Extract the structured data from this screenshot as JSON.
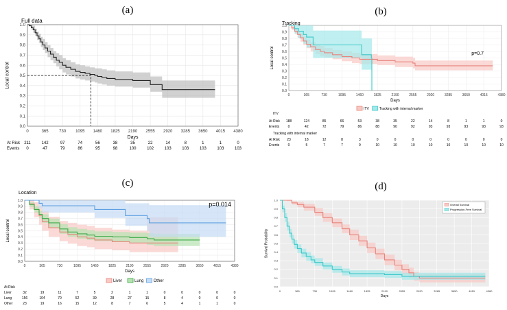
{
  "panel_labels": [
    "(a)",
    "(b)",
    "(c)",
    "(d)"
  ],
  "x_ticks": [
    "0",
    "365",
    "730",
    "1095",
    "1460",
    "1825",
    "2190",
    "2555",
    "2920",
    "3285",
    "3650",
    "4015",
    "4380"
  ],
  "chart_data": [
    {
      "type": "line",
      "title": "Full data",
      "xlabel": "Days",
      "ylabel": "Local control",
      "xlim": [
        0,
        4380
      ],
      "ylim": [
        0,
        1
      ],
      "y_ticks": [
        "0.0",
        "0.1",
        "0.2",
        "0.3",
        "0.4",
        "0.5",
        "0.6",
        "0.7",
        "0.8",
        "0.9",
        "1.0"
      ],
      "series": [
        {
          "name": "All",
          "color": "#222222",
          "band": "#bdbdbd",
          "x": [
            0,
            40,
            80,
            120,
            160,
            200,
            240,
            280,
            320,
            365,
            420,
            480,
            540,
            600,
            660,
            730,
            800,
            900,
            1000,
            1095,
            1200,
            1300,
            1400,
            1460,
            1550,
            1650,
            1825,
            2190,
            2555,
            2700,
            2800,
            3900
          ],
          "y": [
            1.0,
            0.99,
            0.97,
            0.95,
            0.92,
            0.89,
            0.86,
            0.83,
            0.8,
            0.77,
            0.74,
            0.71,
            0.68,
            0.65,
            0.63,
            0.6,
            0.58,
            0.56,
            0.54,
            0.53,
            0.52,
            0.51,
            0.5,
            0.49,
            0.48,
            0.47,
            0.46,
            0.45,
            0.41,
            0.41,
            0.36,
            0.36
          ],
          "lower": [
            1.0,
            0.98,
            0.95,
            0.92,
            0.89,
            0.85,
            0.82,
            0.78,
            0.75,
            0.72,
            0.68,
            0.65,
            0.62,
            0.59,
            0.56,
            0.53,
            0.51,
            0.49,
            0.47,
            0.46,
            0.45,
            0.44,
            0.43,
            0.42,
            0.41,
            0.4,
            0.39,
            0.38,
            0.34,
            0.34,
            0.28,
            0.28
          ],
          "upper": [
            1.0,
            1.0,
            1.0,
            0.99,
            0.96,
            0.93,
            0.91,
            0.88,
            0.86,
            0.83,
            0.8,
            0.77,
            0.74,
            0.72,
            0.7,
            0.67,
            0.65,
            0.63,
            0.61,
            0.6,
            0.59,
            0.58,
            0.57,
            0.57,
            0.56,
            0.55,
            0.54,
            0.53,
            0.49,
            0.49,
            0.45,
            0.45
          ]
        }
      ],
      "median": {
        "x": 1320,
        "y": 0.5
      },
      "risk_table": {
        "rows": [
          {
            "label": "At Risk",
            "values": [
              "211",
              "142",
              "97",
              "74",
              "56",
              "38",
              "35",
              "22",
              "14",
              "8",
              "1",
              "1",
              "0"
            ]
          },
          {
            "label": "Events",
            "values": [
              "0",
              "47",
              "79",
              "86",
              "95",
              "98",
              "100",
              "102",
              "103",
              "103",
              "103",
              "103",
              "103"
            ]
          }
        ]
      }
    },
    {
      "type": "line",
      "title": "Tracking",
      "xlabel": "Days",
      "ylabel": "Local control",
      "xlim": [
        0,
        4380
      ],
      "ylim": [
        0,
        1
      ],
      "y_ticks": [
        "0.0",
        "0.1",
        "0.2",
        "0.3",
        "0.4",
        "0.5",
        "0.6",
        "0.7",
        "0.8",
        "0.9",
        "1.0"
      ],
      "annotation": "p=0.7",
      "legend": [
        "ITV",
        "Tracking with internal marker"
      ],
      "series": [
        {
          "name": "ITV",
          "color": "#e8847c",
          "band": "#f8c9c4",
          "x": [
            0,
            60,
            120,
            180,
            240,
            300,
            365,
            450,
            550,
            650,
            730,
            900,
            1095,
            1300,
            1460,
            1825,
            2190,
            2555,
            2600,
            4200
          ],
          "y": [
            1.0,
            0.96,
            0.91,
            0.86,
            0.81,
            0.76,
            0.71,
            0.67,
            0.63,
            0.6,
            0.58,
            0.55,
            0.52,
            0.5,
            0.48,
            0.46,
            0.44,
            0.42,
            0.38,
            0.38
          ],
          "lower": [
            1.0,
            0.93,
            0.87,
            0.81,
            0.75,
            0.7,
            0.65,
            0.6,
            0.56,
            0.53,
            0.51,
            0.48,
            0.45,
            0.42,
            0.41,
            0.39,
            0.36,
            0.34,
            0.31,
            0.31
          ],
          "upper": [
            1.0,
            0.99,
            0.95,
            0.91,
            0.87,
            0.83,
            0.78,
            0.74,
            0.7,
            0.68,
            0.65,
            0.62,
            0.6,
            0.58,
            0.56,
            0.54,
            0.52,
            0.5,
            0.46,
            0.46
          ]
        },
        {
          "name": "Tracking with internal marker",
          "color": "#3cc8c8",
          "band": "#a4e8ea",
          "x": [
            0,
            120,
            200,
            300,
            365,
            500,
            730,
            900,
            1095,
            1500,
            1600,
            1700,
            1710
          ],
          "y": [
            1.0,
            0.95,
            0.91,
            0.86,
            0.82,
            0.7,
            0.7,
            0.7,
            0.7,
            0.55,
            0.55,
            0.5,
            0.0
          ],
          "lower": [
            1.0,
            0.87,
            0.8,
            0.72,
            0.66,
            0.5,
            0.5,
            0.5,
            0.5,
            0.32,
            0.32,
            0.3,
            0.0
          ],
          "upper": [
            1.0,
            1.0,
            1.0,
            1.0,
            1.0,
            0.92,
            0.92,
            0.92,
            0.92,
            0.8,
            0.8,
            0.8,
            0.8
          ]
        }
      ],
      "risk_table": {
        "groups": [
          {
            "name": "ITV",
            "rows": [
              {
                "label": "At Risk",
                "values": [
                  "188",
                  "124",
                  "85",
                  "66",
                  "53",
                  "38",
                  "35",
                  "22",
                  "14",
                  "8",
                  "1",
                  "1",
                  "0"
                ]
              },
              {
                "label": "Events",
                "values": [
                  "0",
                  "42",
                  "72",
                  "79",
                  "86",
                  "88",
                  "90",
                  "92",
                  "93",
                  "93",
                  "93",
                  "93",
                  "93"
                ]
              }
            ]
          },
          {
            "name": "Tracking with internal marker",
            "rows": [
              {
                "label": "At Risk",
                "values": [
                  "23",
                  "18",
                  "12",
                  "8",
                  "3",
                  "0",
                  "0",
                  "0",
                  "0",
                  "0",
                  "0",
                  "0",
                  "0"
                ]
              },
              {
                "label": "Events",
                "values": [
                  "0",
                  "5",
                  "7",
                  "7",
                  "9",
                  "10",
                  "10",
                  "10",
                  "10",
                  "10",
                  "10",
                  "10",
                  "10"
                ]
              }
            ]
          }
        ]
      }
    },
    {
      "type": "line",
      "title": "Location",
      "xlabel": "Days",
      "ylabel": "Local control",
      "xlim": [
        0,
        4380
      ],
      "ylim": [
        0,
        1
      ],
      "y_ticks": [
        "0.0",
        "0.1",
        "0.2",
        "0.3",
        "0.4",
        "0.5",
        "0.6",
        "0.7",
        "0.8",
        "0.9",
        "1.0"
      ],
      "annotation": "p=0.014",
      "legend": [
        "Liver",
        "Lung",
        "Other"
      ],
      "series": [
        {
          "name": "Liver",
          "color": "#e8847c",
          "band": "#f8c9c4",
          "x": [
            0,
            100,
            200,
            300,
            365,
            500,
            730,
            900,
            1095,
            1300,
            1460,
            1825,
            2190,
            2555,
            2700,
            3200
          ],
          "y": [
            1.0,
            0.94,
            0.85,
            0.75,
            0.65,
            0.55,
            0.48,
            0.44,
            0.4,
            0.38,
            0.35,
            0.32,
            0.3,
            0.3,
            0.3,
            0.3
          ],
          "lower": [
            1.0,
            0.85,
            0.72,
            0.6,
            0.5,
            0.4,
            0.33,
            0.29,
            0.25,
            0.23,
            0.2,
            0.18,
            0.15,
            0.15,
            0.15,
            0.15
          ],
          "upper": [
            1.0,
            1.0,
            0.97,
            0.9,
            0.82,
            0.73,
            0.66,
            0.63,
            0.6,
            0.58,
            0.55,
            0.52,
            0.5,
            0.72,
            0.72,
            0.72
          ]
        },
        {
          "name": "Lung",
          "color": "#3daa4a",
          "band": "#b6e2b0",
          "x": [
            0,
            100,
            200,
            300,
            365,
            500,
            730,
            900,
            1095,
            1300,
            1460,
            1825,
            2190,
            2555,
            2700,
            3650
          ],
          "y": [
            1.0,
            0.93,
            0.85,
            0.77,
            0.7,
            0.63,
            0.53,
            0.48,
            0.45,
            0.43,
            0.41,
            0.4,
            0.39,
            0.37,
            0.35,
            0.35
          ],
          "lower": [
            1.0,
            0.89,
            0.8,
            0.71,
            0.63,
            0.55,
            0.45,
            0.4,
            0.37,
            0.35,
            0.33,
            0.32,
            0.3,
            0.27,
            0.25,
            0.25
          ],
          "upper": [
            1.0,
            0.97,
            0.9,
            0.83,
            0.77,
            0.7,
            0.61,
            0.56,
            0.53,
            0.51,
            0.49,
            0.48,
            0.47,
            0.46,
            0.45,
            0.45
          ]
        },
        {
          "name": "Other",
          "color": "#5d9fe0",
          "band": "#c4dcf5",
          "x": [
            0,
            200,
            300,
            365,
            730,
            1095,
            1460,
            2000,
            2100,
            2190,
            2555,
            2600,
            4200
          ],
          "y": [
            1.0,
            1.0,
            0.95,
            0.91,
            0.91,
            0.91,
            0.85,
            0.85,
            0.75,
            0.75,
            0.7,
            0.63,
            0.63
          ],
          "lower": [
            1.0,
            1.0,
            0.87,
            0.8,
            0.8,
            0.8,
            0.71,
            0.71,
            0.58,
            0.58,
            0.5,
            0.4,
            0.4
          ],
          "upper": [
            1.0,
            1.0,
            1.0,
            1.0,
            1.0,
            1.0,
            1.0,
            1.0,
            0.95,
            0.95,
            0.95,
            0.92,
            0.92
          ]
        }
      ],
      "risk_table": {
        "title": "At Risk",
        "rows": [
          {
            "label": "Liver",
            "values": [
              "32",
              "19",
              "11",
              "7",
              "5",
              "2",
              "1",
              "1",
              "0",
              "0",
              "0",
              "0",
              "0"
            ]
          },
          {
            "label": "Lung",
            "values": [
              "156",
              "104",
              "70",
              "52",
              "39",
              "28",
              "27",
              "15",
              "8",
              "4",
              "0",
              "0",
              "0"
            ]
          },
          {
            "label": "Other",
            "values": [
              "23",
              "19",
              "16",
              "15",
              "12",
              "8",
              "7",
              "6",
              "5",
              "4",
              "1",
              "1",
              "0"
            ]
          }
        ]
      }
    },
    {
      "type": "line",
      "title": "",
      "xlabel": "Days",
      "ylabel": "Survival Probability",
      "xlim": [
        0,
        4380
      ],
      "ylim": [
        0,
        1
      ],
      "y_ticks": [
        "0.0",
        "0.1",
        "0.2",
        "0.3",
        "0.4",
        "0.5",
        "0.6",
        "0.7",
        "0.8",
        "0.9",
        "1.0"
      ],
      "legend": [
        "Overall Survival",
        "Progression-Free Survival"
      ],
      "series": [
        {
          "name": "Overall Survival",
          "color": "#e8847c",
          "band": "#f8c9c4",
          "x": [
            0,
            150,
            250,
            365,
            500,
            730,
            900,
            1095,
            1300,
            1460,
            1650,
            1825,
            2000,
            2190,
            2400,
            2555,
            2700,
            2800,
            2920,
            4300
          ],
          "y": [
            1.0,
            1.0,
            0.97,
            0.95,
            0.92,
            0.86,
            0.8,
            0.74,
            0.67,
            0.6,
            0.53,
            0.45,
            0.38,
            0.31,
            0.25,
            0.2,
            0.16,
            0.12,
            0.1,
            0.1
          ],
          "lower": [
            1.0,
            0.99,
            0.95,
            0.92,
            0.88,
            0.82,
            0.75,
            0.69,
            0.62,
            0.54,
            0.47,
            0.39,
            0.32,
            0.25,
            0.19,
            0.14,
            0.1,
            0.07,
            0.05,
            0.05
          ],
          "upper": [
            1.0,
            1.0,
            0.99,
            0.98,
            0.96,
            0.91,
            0.85,
            0.79,
            0.72,
            0.66,
            0.59,
            0.51,
            0.44,
            0.37,
            0.31,
            0.26,
            0.22,
            0.17,
            0.15,
            0.15
          ]
        },
        {
          "name": "Progression-Free Survival",
          "color": "#3cc8c8",
          "band": "#a4e8ea",
          "x": [
            0,
            50,
            100,
            150,
            200,
            250,
            300,
            365,
            450,
            550,
            650,
            730,
            900,
            1095,
            1300,
            1460,
            1825,
            2190,
            2555,
            2920,
            4300
          ],
          "y": [
            1.0,
            0.9,
            0.8,
            0.7,
            0.62,
            0.55,
            0.49,
            0.44,
            0.39,
            0.35,
            0.31,
            0.28,
            0.24,
            0.2,
            0.17,
            0.15,
            0.15,
            0.14,
            0.12,
            0.12,
            0.12
          ],
          "lower": [
            1.0,
            0.86,
            0.75,
            0.65,
            0.57,
            0.5,
            0.44,
            0.39,
            0.34,
            0.3,
            0.27,
            0.24,
            0.2,
            0.16,
            0.13,
            0.11,
            0.11,
            0.1,
            0.08,
            0.08,
            0.08
          ],
          "upper": [
            1.0,
            0.94,
            0.85,
            0.75,
            0.67,
            0.6,
            0.54,
            0.49,
            0.44,
            0.4,
            0.36,
            0.33,
            0.28,
            0.24,
            0.21,
            0.19,
            0.19,
            0.18,
            0.16,
            0.16,
            0.16
          ]
        }
      ]
    }
  ]
}
